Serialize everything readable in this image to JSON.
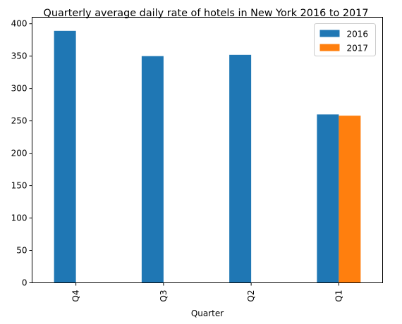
{
  "chart_data": {
    "type": "bar",
    "title": "Quarterly average daily rate of hotels in New York 2016 to 2017",
    "xlabel": "Quarter",
    "ylabel": "",
    "categories": [
      "Q4",
      "Q3",
      "Q2",
      "Q1"
    ],
    "series": [
      {
        "name": "2016",
        "values": [
          389,
          350,
          352,
          260
        ],
        "color": "#1f77b4"
      },
      {
        "name": "2017",
        "values": [
          null,
          null,
          null,
          258
        ],
        "color": "#ff7f0e"
      }
    ],
    "ylim": [
      0,
      410
    ],
    "yticks": [
      0,
      50,
      100,
      150,
      200,
      250,
      300,
      350,
      400
    ],
    "legend_position": "top-right",
    "grid": false
  }
}
